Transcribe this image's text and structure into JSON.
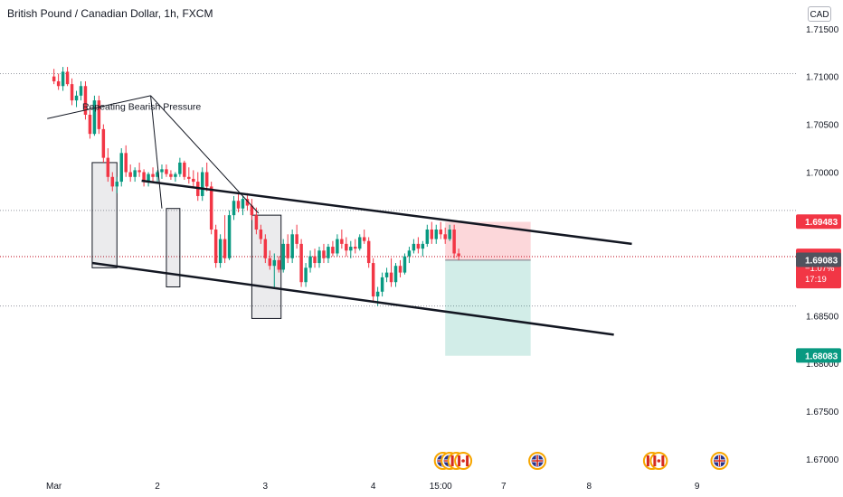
{
  "header": {
    "title": "British Pound / Canadian Dollar, 1h, FXCM",
    "currency": "CAD"
  },
  "chart_data": {
    "type": "candlestick",
    "ylim": [
      1.6683,
      1.718
    ],
    "xlabels": [
      {
        "label": "Mar",
        "x": 0
      },
      {
        "label": "2",
        "x": 23
      },
      {
        "label": "3",
        "x": 47
      },
      {
        "label": "4",
        "x": 71
      },
      {
        "label": "15:00",
        "x": 86
      },
      {
        "label": "7",
        "x": 100
      },
      {
        "label": "8",
        "x": 119
      },
      {
        "label": "9",
        "x": 143
      }
    ],
    "xlim": [
      -12,
      165
    ],
    "yticks": [
      1.715,
      1.71,
      1.705,
      1.7,
      1.695,
      1.69,
      1.685,
      1.68,
      1.675,
      1.67
    ],
    "ytick_labels": [
      "1.71500",
      "1.71000",
      "1.70500",
      "1.70000",
      "1.69500",
      "1.69000",
      "1.68500",
      "1.68000",
      "1.67500",
      "1.67000"
    ],
    "dotted_levels": [
      1.7103,
      1.696,
      1.6912,
      1.686
    ],
    "price_tags": [
      {
        "label": "1.69483",
        "value": 1.69483,
        "color": "#f23645"
      },
      {
        "label": "1.69115",
        "value": 1.69115,
        "color": "#f23645",
        "sub": [
          "−1.07%",
          "17:19"
        ]
      },
      {
        "label": "1.69083",
        "value": 1.69083,
        "color": "#50535e"
      },
      {
        "label": "1.68083",
        "value": 1.68083,
        "color": "#089981"
      }
    ],
    "candles": [
      [
        1.71,
        1.7108,
        1.7092,
        1.7095
      ],
      [
        1.7095,
        1.7103,
        1.7086,
        1.709
      ],
      [
        1.709,
        1.711,
        1.7085,
        1.7105
      ],
      [
        1.7105,
        1.711,
        1.709,
        1.7092
      ],
      [
        1.7092,
        1.7098,
        1.707,
        1.7075
      ],
      [
        1.7075,
        1.7085,
        1.7068,
        1.708
      ],
      [
        1.708,
        1.7095,
        1.7075,
        1.709
      ],
      [
        1.709,
        1.7095,
        1.7055,
        1.706
      ],
      [
        1.706,
        1.7065,
        1.7035,
        1.704
      ],
      [
        1.704,
        1.708,
        1.7038,
        1.7075
      ],
      [
        1.7075,
        1.708,
        1.704,
        1.7045
      ],
      [
        1.7045,
        1.705,
        1.701,
        1.7015
      ],
      [
        1.7015,
        1.7025,
        1.699,
        1.6995
      ],
      [
        1.6995,
        1.7,
        1.698,
        1.6985
      ],
      [
        1.6985,
        1.6995,
        1.6978,
        1.699
      ],
      [
        1.699,
        1.7025,
        1.6985,
        1.702
      ],
      [
        1.702,
        1.7028,
        1.6995,
        1.7
      ],
      [
        1.7,
        1.7008,
        1.699,
        1.6995
      ],
      [
        1.6995,
        1.7005,
        1.699,
        1.7002
      ],
      [
        1.7002,
        1.701,
        1.6995,
        1.7
      ],
      [
        1.7,
        1.7003,
        1.6985,
        1.699
      ],
      [
        1.699,
        1.7,
        1.6985,
        1.6998
      ],
      [
        1.6998,
        1.7005,
        1.699,
        1.6995
      ],
      [
        1.6995,
        1.7002,
        1.699,
        1.7
      ],
      [
        1.7,
        1.7008,
        1.6993,
        1.7003
      ],
      [
        1.7003,
        1.7008,
        1.6995,
        1.6998
      ],
      [
        1.6998,
        1.7002,
        1.6992,
        1.6995
      ],
      [
        1.6995,
        1.7,
        1.699,
        1.6998
      ],
      [
        1.6998,
        1.7015,
        1.6995,
        1.701
      ],
      [
        1.701,
        1.7012,
        1.6992,
        1.6995
      ],
      [
        1.6995,
        1.7005,
        1.6988,
        1.6993
      ],
      [
        1.6993,
        1.7002,
        1.6985,
        1.699
      ],
      [
        1.699,
        1.7,
        1.697,
        1.6975
      ],
      [
        1.6975,
        1.7005,
        1.697,
        1.7
      ],
      [
        1.7,
        1.701,
        1.698,
        1.6985
      ],
      [
        1.6985,
        1.699,
        1.6935,
        1.694
      ],
      [
        1.694,
        1.6945,
        1.69,
        1.6905
      ],
      [
        1.6905,
        1.6935,
        1.69,
        1.693
      ],
      [
        1.693,
        1.6955,
        1.6905,
        1.691
      ],
      [
        1.691,
        1.696,
        1.6908,
        1.6955
      ],
      [
        1.6955,
        1.6975,
        1.695,
        1.697
      ],
      [
        1.697,
        1.6978,
        1.6958,
        1.6962
      ],
      [
        1.6962,
        1.6975,
        1.6955,
        1.6972
      ],
      [
        1.6972,
        1.6978,
        1.696,
        1.6965
      ],
      [
        1.6965,
        1.6972,
        1.695,
        1.6955
      ],
      [
        1.6955,
        1.6963,
        1.6935,
        1.694
      ],
      [
        1.694,
        1.6945,
        1.6925,
        1.693
      ],
      [
        1.693,
        1.6935,
        1.6905,
        1.691
      ],
      [
        1.691,
        1.6918,
        1.6898,
        1.6902
      ],
      [
        1.6902,
        1.6915,
        1.688,
        1.6908
      ],
      [
        1.6908,
        1.6912,
        1.6895,
        1.6898
      ],
      [
        1.6898,
        1.693,
        1.6895,
        1.6925
      ],
      [
        1.6925,
        1.6935,
        1.6905,
        1.691
      ],
      [
        1.691,
        1.694,
        1.6905,
        1.6935
      ],
      [
        1.6935,
        1.6945,
        1.692,
        1.6925
      ],
      [
        1.6925,
        1.693,
        1.688,
        1.6885
      ],
      [
        1.6885,
        1.6905,
        1.688,
        1.69
      ],
      [
        1.69,
        1.6918,
        1.6895,
        1.6912
      ],
      [
        1.6912,
        1.692,
        1.69,
        1.6905
      ],
      [
        1.6905,
        1.6922,
        1.69,
        1.6918
      ],
      [
        1.6918,
        1.6925,
        1.6905,
        1.691
      ],
      [
        1.691,
        1.6925,
        1.6905,
        1.6922
      ],
      [
        1.6922,
        1.6928,
        1.6912,
        1.6915
      ],
      [
        1.6915,
        1.6935,
        1.6912,
        1.693
      ],
      [
        1.693,
        1.694,
        1.692,
        1.6925
      ],
      [
        1.6925,
        1.6932,
        1.6912,
        1.6918
      ],
      [
        1.6918,
        1.6928,
        1.691,
        1.6922
      ],
      [
        1.6922,
        1.693,
        1.6915,
        1.692
      ],
      [
        1.692,
        1.6935,
        1.6918,
        1.6932
      ],
      [
        1.6932,
        1.694,
        1.6925,
        1.6928
      ],
      [
        1.6928,
        1.6932,
        1.69,
        1.6905
      ],
      [
        1.6905,
        1.691,
        1.6865,
        1.687
      ],
      [
        1.687,
        1.688,
        1.686,
        1.6875
      ],
      [
        1.6875,
        1.6895,
        1.687,
        1.689
      ],
      [
        1.689,
        1.69,
        1.6885,
        1.6895
      ],
      [
        1.6895,
        1.691,
        1.688,
        1.6885
      ],
      [
        1.6885,
        1.6905,
        1.688,
        1.6902
      ],
      [
        1.6902,
        1.6908,
        1.689,
        1.6895
      ],
      [
        1.6895,
        1.6915,
        1.6893,
        1.6912
      ],
      [
        1.6912,
        1.6922,
        1.6905,
        1.6918
      ],
      [
        1.6918,
        1.693,
        1.6915,
        1.6925
      ],
      [
        1.6925,
        1.6932,
        1.6915,
        1.692
      ],
      [
        1.692,
        1.6928,
        1.6912,
        1.6925
      ],
      [
        1.6925,
        1.6945,
        1.6922,
        1.694
      ],
      [
        1.694,
        1.6948,
        1.6925,
        1.693
      ],
      [
        1.693,
        1.6945,
        1.6925,
        1.694
      ],
      [
        1.694,
        1.6948,
        1.693,
        1.6935
      ],
      [
        1.6935,
        1.6942,
        1.6925,
        1.693
      ],
      [
        1.693,
        1.6945,
        1.6928,
        1.694
      ],
      [
        1.694,
        1.6945,
        1.691,
        1.6915
      ],
      [
        1.6915,
        1.692,
        1.6908,
        1.6912
      ]
    ],
    "trendlines": [
      {
        "from": [
          19.5,
          1.6991
        ],
        "to": [
          128.5,
          1.6925
        ]
      },
      {
        "from": [
          8.5,
          1.6905
        ],
        "to": [
          124.5,
          1.683
        ]
      },
      {
        "from": [
          -1.5,
          1.7056
        ],
        "to": [
          21.5,
          1.708
        ]
      },
      {
        "from": [
          21.5,
          1.708
        ],
        "to": [
          24.0,
          1.6962
        ]
      },
      {
        "from": [
          21.5,
          1.708
        ],
        "to": [
          45.5,
          1.6957
        ]
      }
    ],
    "boxes": [
      {
        "x": [
          8.5,
          14.0
        ],
        "y": [
          1.69,
          1.701
        ]
      },
      {
        "x": [
          25.0,
          28.0
        ],
        "y": [
          1.688,
          1.6962
        ]
      },
      {
        "x": [
          44.0,
          50.5
        ],
        "y": [
          1.6847,
          1.6955
        ]
      },
      {
        "x": [
          87.0,
          106.0
        ],
        "y": [
          1.6908,
          1.6948
        ],
        "kind": "risk"
      },
      {
        "x": [
          87.0,
          106.0
        ],
        "y": [
          1.6808,
          1.6908
        ],
        "kind": "reward"
      }
    ],
    "annotation": {
      "text": "Repeating Bearish Pressure",
      "x": 19.5,
      "y": 1.7065
    },
    "event_markers": [
      {
        "x": 86.5,
        "flag": "uk"
      },
      {
        "x": 88.0,
        "flag": "uk"
      },
      {
        "x": 89.5,
        "flag": "ca"
      },
      {
        "x": 91.0,
        "flag": "ca"
      },
      {
        "x": 107.5,
        "flag": "uk"
      },
      {
        "x": 133.0,
        "flag": "ca"
      },
      {
        "x": 134.5,
        "flag": "ca"
      },
      {
        "x": 148.0,
        "flag": "uk"
      }
    ]
  }
}
